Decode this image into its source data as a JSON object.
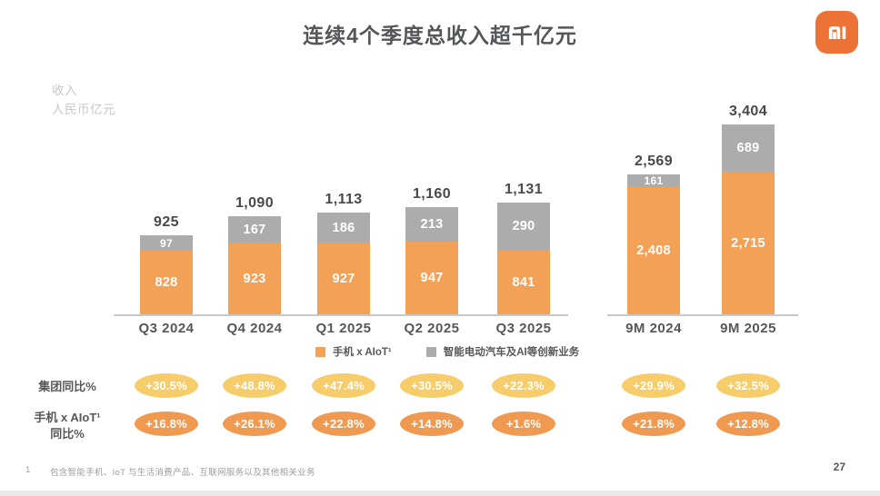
{
  "slide": {
    "title": "连续4个季度总收入超千亿元",
    "page_number": "27",
    "footnote_index": "1",
    "footnote_text": "包含智能手机、IoT 与生活消费产品、互联网服务以及其他相关业务"
  },
  "axis": {
    "line1": "收入",
    "line2": "人民币亿元"
  },
  "legend": [
    {
      "label": "手机 x AIoT¹",
      "color": "#F2A156"
    },
    {
      "label": "智能电动汽车及AI等创新业务",
      "color": "#ACACAC"
    }
  ],
  "colors": {
    "phone_aiot": "#F2A156",
    "ev_ai": "#ACACAC",
    "group_yoy_badge": "#F7CD6B",
    "phone_yoy_badge": "#EF9A50",
    "logo": "#EC7236"
  },
  "chart_data": {
    "type": "bar",
    "stacked": true,
    "title": "连续4个季度总收入超千亿元",
    "ylabel": "收入 人民币亿元",
    "categories": [
      "Q3 2024",
      "Q4 2024",
      "Q1 2025",
      "Q2 2025",
      "Q3 2025",
      "9M 2024",
      "9M 2025"
    ],
    "series": [
      {
        "name": "手机 x AIoT¹",
        "color": "#F2A156",
        "values": [
          828,
          923,
          927,
          947,
          841,
          2408,
          2715
        ]
      },
      {
        "name": "智能电动汽车及AI等创新业务",
        "color": "#ACACAC",
        "values": [
          97,
          167,
          186,
          213,
          290,
          161,
          689
        ]
      }
    ],
    "totals": [
      925,
      1090,
      1113,
      1160,
      1131,
      2569,
      3404
    ],
    "legend_position": "bottom",
    "grid": false,
    "yoy_rows": [
      {
        "label_lines": [
          "集团同比%"
        ],
        "badge_color": "#F7CD6B",
        "values": [
          "+30.5%",
          "+48.8%",
          "+47.4%",
          "+30.5%",
          "+22.3%",
          "+29.9%",
          "+32.5%"
        ]
      },
      {
        "label_lines": [
          "手机 x AIoT¹",
          "同比%"
        ],
        "badge_color": "#EF9A50",
        "values": [
          "+16.8%",
          "+26.1%",
          "+22.8%",
          "+14.8%",
          "+1.6%",
          "+21.8%",
          "+12.8%"
        ]
      }
    ]
  }
}
